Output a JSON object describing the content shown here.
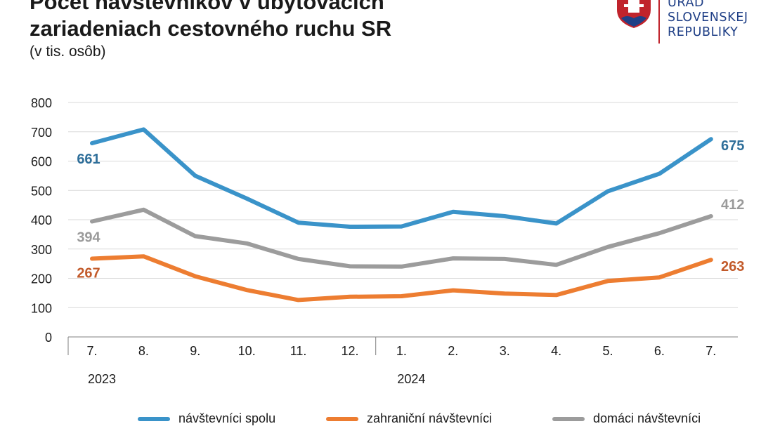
{
  "header": {
    "title_line1": "Počet návštevníkov v ubytovacích",
    "title_line2": "zariadeniach cestovného ruchu SR",
    "subtitle": "(v tis. osôb)"
  },
  "logo": {
    "line1": "ÚRAD",
    "line2": "SLOVENSKEJ",
    "line3": "REPUBLIKY",
    "colors": {
      "blue": "#1f3f86",
      "red": "#c0232c"
    }
  },
  "chart_data": {
    "type": "line",
    "title": "Počet návštevníkov v ubytovacích zariadeniach cestovného ruchu SR",
    "subtitle": "(v tis. osôb)",
    "categories": [
      "7.",
      "8.",
      "9.",
      "10.",
      "11.",
      "12.",
      "1.",
      "2.",
      "3.",
      "4.",
      "5.",
      "6.",
      "7."
    ],
    "year_labels": [
      {
        "label": "2023",
        "start_index": 0
      },
      {
        "label": "2024",
        "start_index": 6
      }
    ],
    "y_ticks": [
      0,
      100,
      200,
      300,
      400,
      500,
      600,
      700,
      800
    ],
    "ylim": [
      0,
      800
    ],
    "grid": true,
    "legend_position": "bottom",
    "series": [
      {
        "name": "návštevníci spolu",
        "color": "#3a93c9",
        "label_color": "#2f6f9a",
        "values": [
          661,
          708,
          550,
          472,
          390,
          376,
          377,
          427,
          412,
          387,
          497,
          557,
          675
        ],
        "first_label": "661",
        "last_label": "675"
      },
      {
        "name": "zahraniční návštevníci",
        "color": "#ed7d31",
        "label_color": "#c25a2a",
        "values": [
          267,
          275,
          207,
          160,
          126,
          137,
          139,
          159,
          148,
          143,
          191,
          203,
          263
        ],
        "first_label": "267",
        "last_label": "263"
      },
      {
        "name": "domáci návštevníci",
        "color": "#9c9c9c",
        "label_color": "#9a9a9a",
        "values": [
          394,
          434,
          344,
          319,
          266,
          241,
          240,
          268,
          266,
          246,
          307,
          354,
          412
        ],
        "first_label": "394",
        "last_label": "412"
      }
    ]
  }
}
